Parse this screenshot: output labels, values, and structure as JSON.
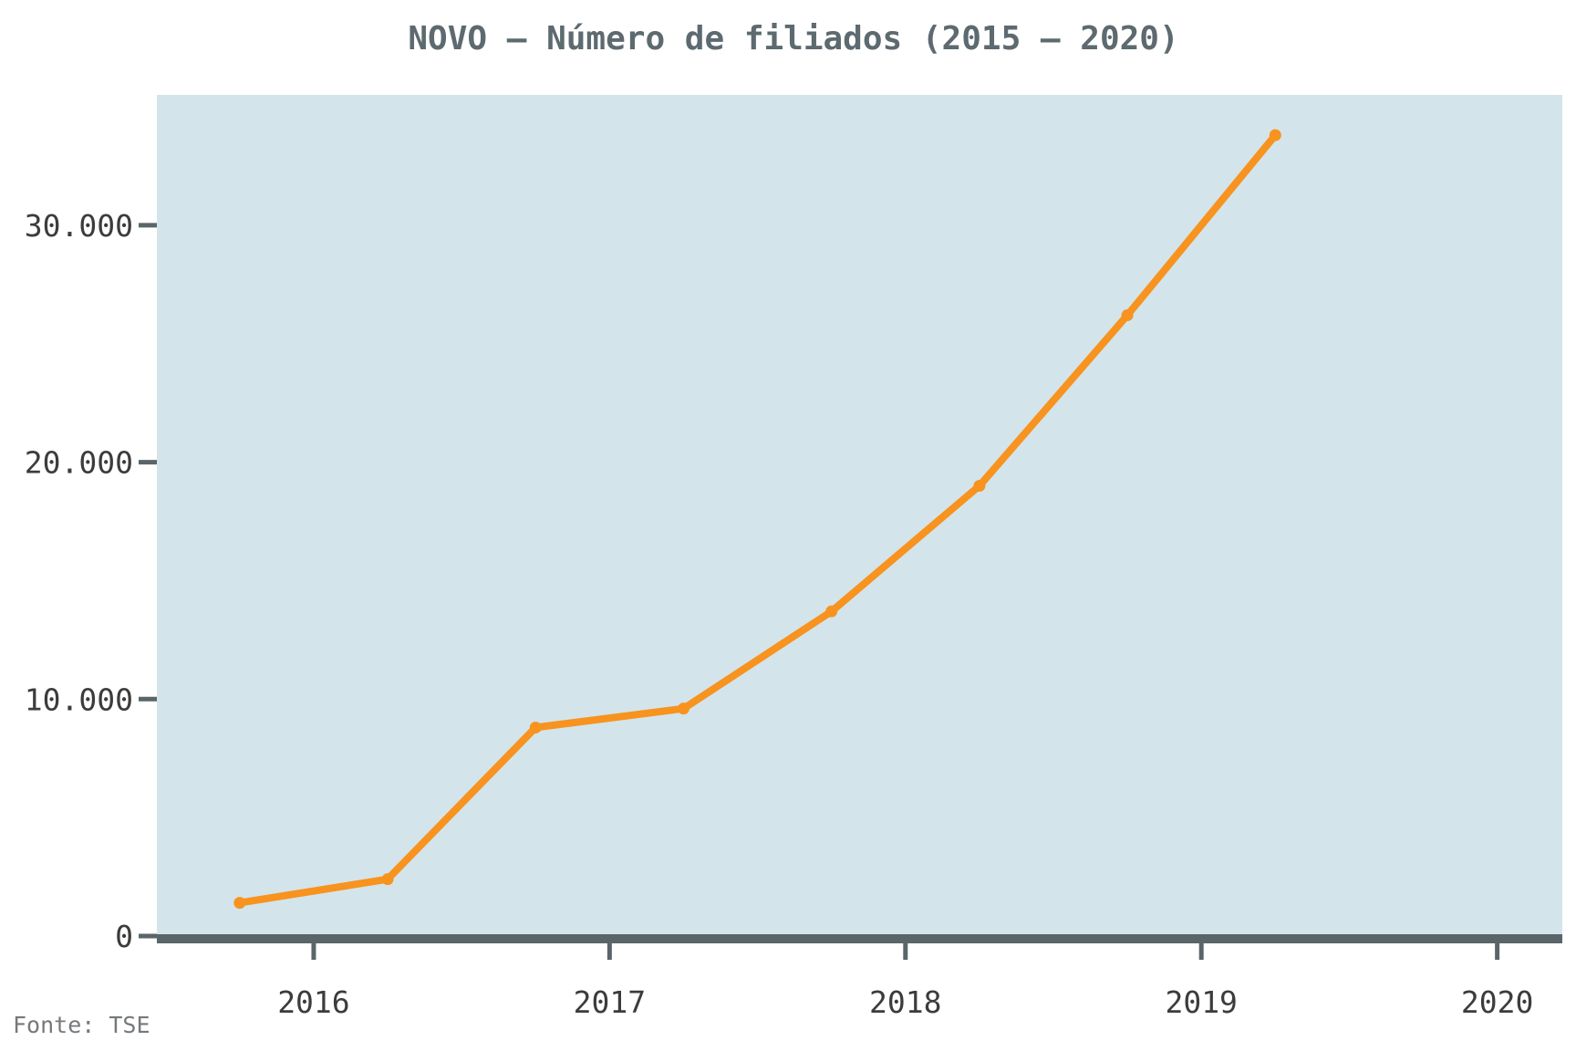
{
  "chart_data": {
    "type": "line",
    "title": "NOVO – Número de filiados (2015 – 2020)",
    "xlabel": "",
    "ylabel": "",
    "source": "Fonte: TSE",
    "x": [
      2015.75,
      2016.25,
      2016.75,
      2017.25,
      2017.75,
      2018.25,
      2018.75,
      2019.25
    ],
    "series": [
      {
        "values": [
          1400,
          2400,
          8800,
          9600,
          13700,
          19000,
          26200,
          33800
        ]
      }
    ],
    "xlim": [
      2015.47,
      2020.22
    ],
    "ylim": [
      0,
      35500
    ],
    "x_ticks": [
      2016,
      2017,
      2018,
      2019,
      2020
    ],
    "x_tick_labels": [
      "2016",
      "2017",
      "2018",
      "2019",
      "2020"
    ],
    "y_ticks": [
      0,
      10000,
      20000,
      30000
    ],
    "y_tick_labels": [
      "0",
      "10.000",
      "20.000",
      "30.000"
    ],
    "grid": false,
    "colors": {
      "line": "#f7931e",
      "plot_background": "#d4e4eb",
      "axis": "#5a656a",
      "title": "#5d6a70"
    }
  }
}
